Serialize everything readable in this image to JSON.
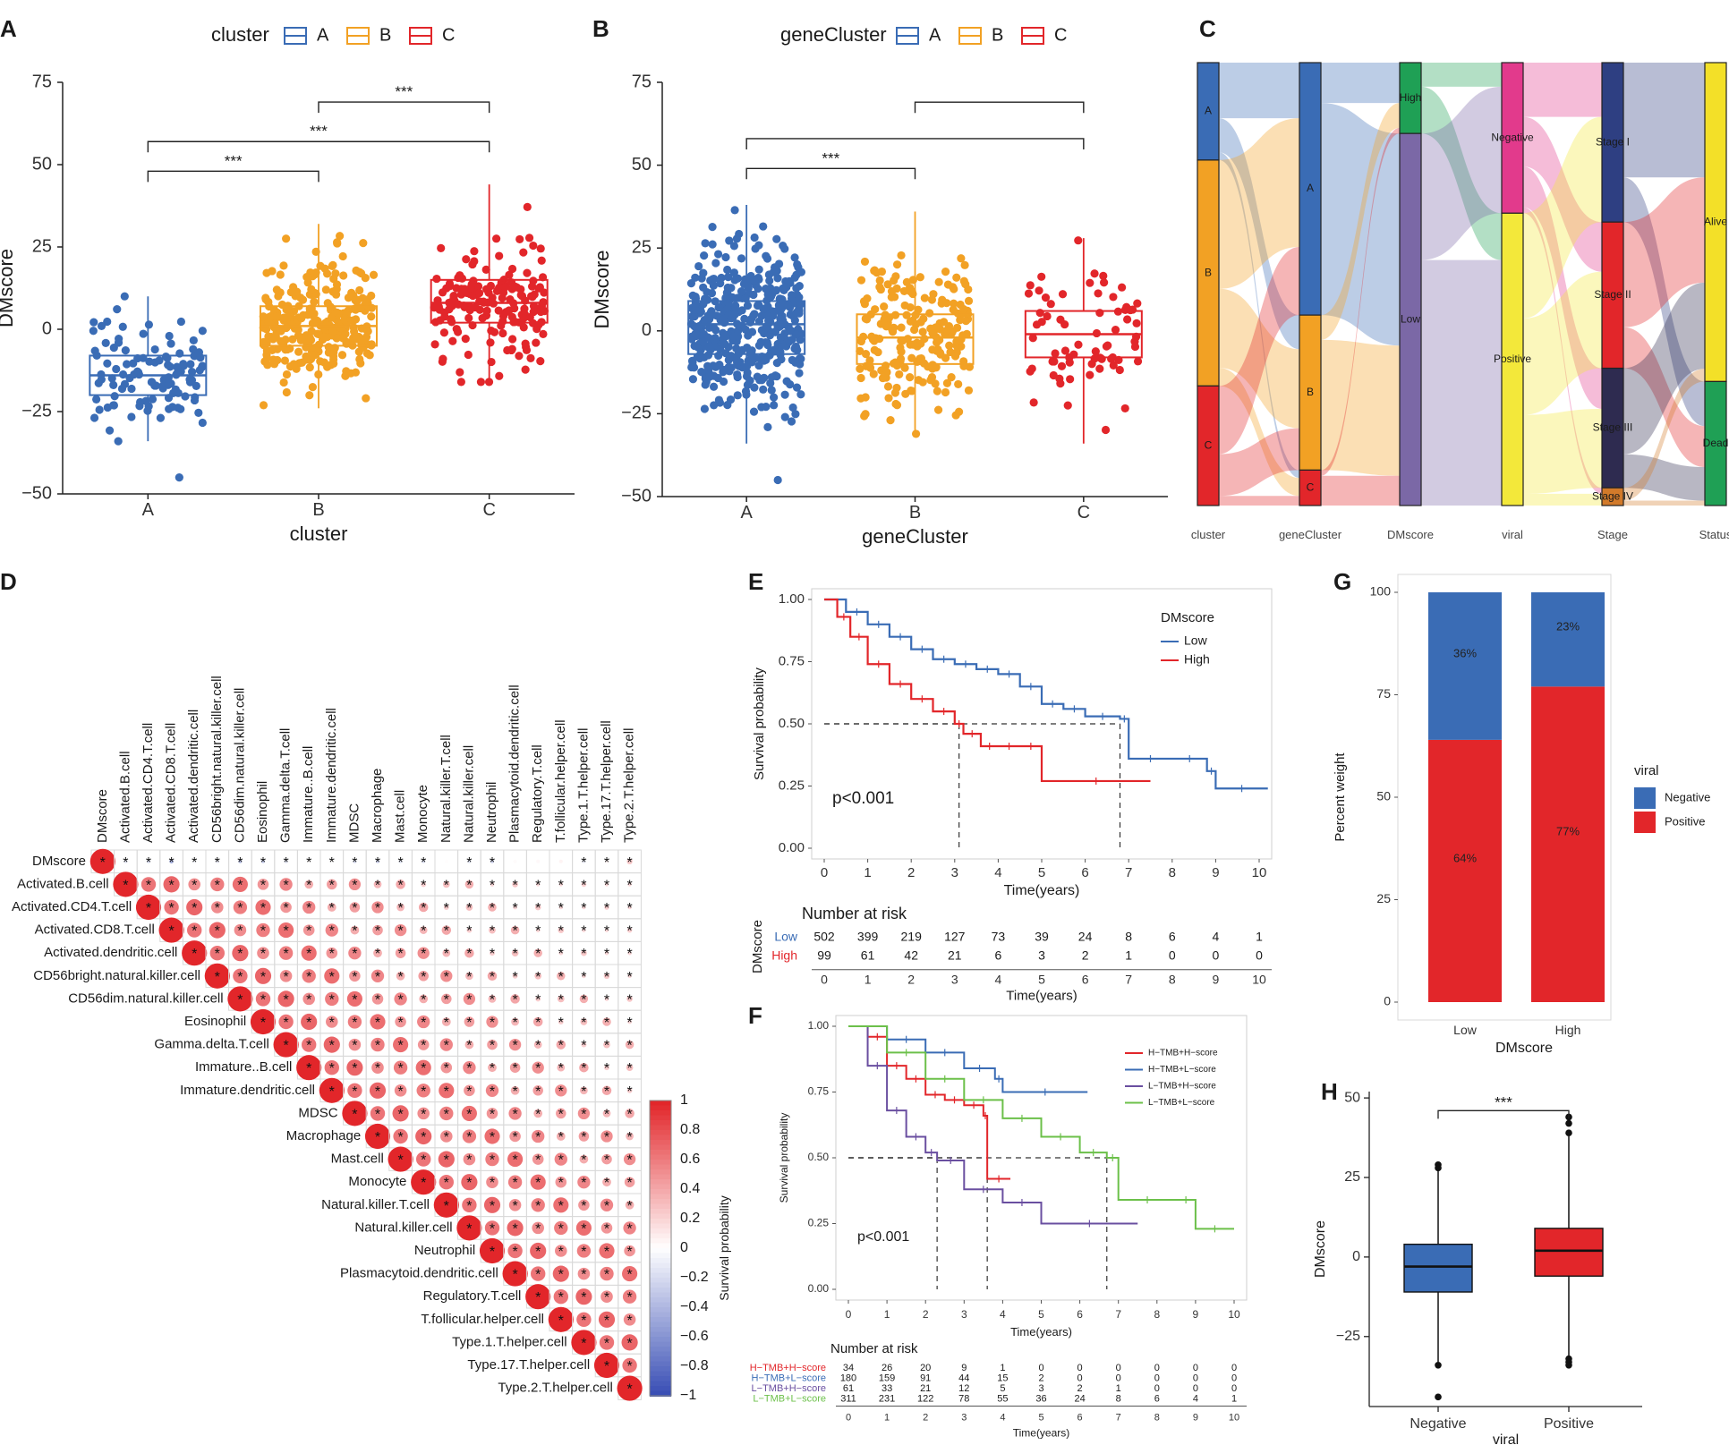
{
  "panel_letters": [
    "A",
    "B",
    "C",
    "D",
    "E",
    "F",
    "G",
    "H"
  ],
  "chart_data": [
    {
      "panel": "A",
      "type": "box",
      "legend_title": "cluster",
      "legend": [
        "A",
        "B",
        "C"
      ],
      "colors": [
        "#3A6CB5",
        "#F2A124",
        "#E2262A"
      ],
      "categories": [
        "A",
        "B",
        "C"
      ],
      "xlabel": "cluster",
      "ylabel": "DMscore",
      "ylim": [
        -50,
        75
      ],
      "yticks": [
        "75",
        "50",
        "25",
        "0",
        "−25",
        "−50"
      ],
      "boxes": [
        {
          "q1": -20,
          "median": -14,
          "q3": -8,
          "wlo": -34,
          "whi": 10,
          "n": 110,
          "outliers": [
            -45
          ]
        },
        {
          "q1": -5,
          "median": 1,
          "q3": 7,
          "wlo": -24,
          "whi": 32,
          "n": 300,
          "outliers": []
        },
        {
          "q1": 2,
          "median": 8,
          "q3": 15,
          "wlo": -16,
          "whi": 44,
          "n": 170,
          "outliers": []
        }
      ],
      "significance": [
        {
          "from": 0,
          "to": 1,
          "label": "***",
          "y": 48
        },
        {
          "from": 0,
          "to": 2,
          "label": "***",
          "y": 57
        },
        {
          "from": 1,
          "to": 2,
          "label": "***",
          "y": 69
        }
      ]
    },
    {
      "panel": "B",
      "type": "box",
      "legend_title": "geneCluster",
      "legend": [
        "A",
        "B",
        "C"
      ],
      "colors": [
        "#3A6CB5",
        "#F2A124",
        "#E2262A"
      ],
      "categories": [
        "A",
        "B",
        "C"
      ],
      "xlabel": "geneCluster",
      "ylabel": "DMscore",
      "ylim": [
        -50,
        75
      ],
      "yticks": [
        "75",
        "50",
        "25",
        "0",
        "−25",
        "−50"
      ],
      "boxes": [
        {
          "q1": -7,
          "median": 2,
          "q3": 9,
          "wlo": -34,
          "whi": 38,
          "n": 420,
          "outliers": [
            -45
          ]
        },
        {
          "q1": -10,
          "median": -2,
          "q3": 5,
          "wlo": -32,
          "whi": 36,
          "n": 210,
          "outliers": []
        },
        {
          "q1": -8,
          "median": -1,
          "q3": 6,
          "wlo": -34,
          "whi": 28,
          "n": 70,
          "outliers": []
        }
      ],
      "significance": [
        {
          "from": 0,
          "to": 1,
          "label": "***",
          "y": 49
        },
        {
          "from": 0,
          "to": 2,
          "label": "",
          "y": 58
        },
        {
          "from": 1,
          "to": 2,
          "label": "",
          "y": 69
        }
      ]
    },
    {
      "panel": "C",
      "type": "sankey",
      "axes": [
        "cluster",
        "geneCluster",
        "DMscore",
        "viral",
        "Stage",
        "Status"
      ],
      "strata": [
        [
          {
            "label": "A",
            "share": 0.22,
            "color": "#3A6CB5"
          },
          {
            "label": "B",
            "share": 0.51,
            "color": "#F2A124"
          },
          {
            "label": "C",
            "share": 0.27,
            "color": "#E2262A"
          }
        ],
        [
          {
            "label": "A",
            "share": 0.57,
            "color": "#3A6CB5"
          },
          {
            "label": "B",
            "share": 0.35,
            "color": "#F2A124"
          },
          {
            "label": "C",
            "share": 0.08,
            "color": "#E2262A"
          }
        ],
        [
          {
            "label": "High",
            "share": 0.16,
            "color": "#1FA055"
          },
          {
            "label": "Low",
            "share": 0.84,
            "color": "#7B68A6"
          }
        ],
        [
          {
            "label": "Negative",
            "share": 0.34,
            "color": "#E23A8C"
          },
          {
            "label": "Positive",
            "share": 0.66,
            "color": "#F3E83A"
          }
        ],
        [
          {
            "label": "Stage I",
            "share": 0.36,
            "color": "#2E3F82"
          },
          {
            "label": "Stage II",
            "share": 0.33,
            "color": "#E2262A"
          },
          {
            "label": "Stage III",
            "share": 0.27,
            "color": "#2E2B50"
          },
          {
            "label": "Stage IV",
            "share": 0.04,
            "color": "#D27A2A"
          }
        ],
        [
          {
            "label": "Alive",
            "share": 0.72,
            "color": "#F3E028"
          },
          {
            "label": "Dead",
            "share": 0.28,
            "color": "#1FA055"
          }
        ]
      ]
    },
    {
      "panel": "D",
      "type": "heatmap",
      "labels": [
        "DMscore",
        "Activated.B.cell",
        "Activated.CD4.T.cell",
        "Activated.CD8.T.cell",
        "Activated.dendritic.cell",
        "CD56bright.natural.killer.cell",
        "CD56dim.natural.killer.cell",
        "Eosinophil",
        "Gamma.delta.T.cell",
        "Immature..B.cell",
        "Immature.dendritic.cell",
        "MDSC",
        "Macrophage",
        "Mast.cell",
        "Monocyte",
        "Natural.killer.T.cell",
        "Natural.killer.cell",
        "Neutrophil",
        "Plasmacytoid.dendritic.cell",
        "Regulatory.T.cell",
        "T.follicular.helper.cell",
        "Type.1.T.helper.cell",
        "Type.17.T.helper.cell",
        "Type.2.T.helper.cell"
      ],
      "colorbar_ticks": [
        "1",
        "0.8",
        "0.6",
        "0.4",
        "0.2",
        "0",
        "−0.2",
        "−0.4",
        "−0.6",
        "−0.8",
        "−1"
      ],
      "colorbar_label": "Survival probability",
      "cell_mark": "*",
      "dmscore_row": [
        1,
        -0.05,
        -0.08,
        -0.18,
        -0.02,
        -0.04,
        -0.15,
        -0.12,
        -0.06,
        0.02,
        0.01,
        -0.08,
        -0.1,
        -0.06,
        -0.07,
        0.01,
        -0.06,
        -0.1,
        0.02,
        0.03,
        0.05,
        -0.04,
        0.06,
        0.25
      ]
    },
    {
      "panel": "E",
      "type": "line",
      "ylabel": "Survival probability",
      "xlabel": "Time(years)",
      "xticks": [
        "0",
        "1",
        "2",
        "3",
        "4",
        "5",
        "6",
        "7",
        "8",
        "9",
        "10"
      ],
      "yticks": [
        "1.00",
        "0.75",
        "0.50",
        "0.25",
        "0.00"
      ],
      "xlim": [
        0,
        10
      ],
      "ylim": [
        0,
        1
      ],
      "legend_title": "DMscore",
      "series": [
        {
          "name": "Low",
          "color": "#3A6CB5",
          "x": [
            0,
            0.5,
            1,
            1.5,
            2,
            2.5,
            3,
            3.5,
            4,
            4.5,
            5,
            5.5,
            6,
            6.8,
            7,
            8,
            8.8,
            9,
            10.2
          ],
          "y": [
            1,
            0.95,
            0.9,
            0.85,
            0.8,
            0.76,
            0.74,
            0.72,
            0.7,
            0.65,
            0.58,
            0.56,
            0.53,
            0.52,
            0.36,
            0.36,
            0.31,
            0.24,
            0.24
          ]
        },
        {
          "name": "High",
          "color": "#E2262A",
          "x": [
            0,
            0.3,
            0.6,
            1,
            1.5,
            2,
            2.5,
            3,
            3.2,
            3.6,
            4,
            4.5,
            5,
            7.5
          ],
          "y": [
            1,
            0.93,
            0.85,
            0.74,
            0.66,
            0.6,
            0.55,
            0.5,
            0.46,
            0.41,
            0.41,
            0.41,
            0.27,
            0.27
          ]
        }
      ],
      "median_lines": [
        {
          "x": 3.1,
          "y": 0.5
        },
        {
          "x": 6.8,
          "y": 0.5
        }
      ],
      "pvalue": "p<0.001",
      "risk_table": {
        "title": "Number at risk",
        "ylabel": "DMscore",
        "xlabel": "Time(years)",
        "rows": [
          {
            "name": "Low",
            "color": "#3A6CB5",
            "values": [
              "502",
              "399",
              "219",
              "127",
              "73",
              "39",
              "24",
              "8",
              "6",
              "4",
              "1"
            ]
          },
          {
            "name": "High",
            "color": "#E2262A",
            "values": [
              "99",
              "61",
              "42",
              "21",
              "6",
              "3",
              "2",
              "1",
              "0",
              "0",
              "0"
            ]
          }
        ]
      }
    },
    {
      "panel": "F",
      "type": "line",
      "ylabel": "Survival probability",
      "xlabel": "Time(years)",
      "xticks": [
        "0",
        "1",
        "2",
        "3",
        "4",
        "5",
        "6",
        "7",
        "8",
        "9",
        "10"
      ],
      "yticks": [
        "1.00",
        "0.75",
        "0.50",
        "0.25",
        "0.00"
      ],
      "xlim": [
        0,
        10
      ],
      "ylim": [
        0,
        1
      ],
      "series": [
        {
          "name": "H−TMB+H−score",
          "color": "#E2262A",
          "x": [
            0,
            0.5,
            1,
            1.5,
            2,
            2.5,
            3,
            3.5,
            3.6,
            4.2
          ],
          "y": [
            1,
            0.96,
            0.85,
            0.8,
            0.74,
            0.72,
            0.7,
            0.66,
            0.42,
            0.42
          ]
        },
        {
          "name": "H−TMB+L−score",
          "color": "#3A6CB5",
          "x": [
            0,
            1,
            2,
            3,
            3.8,
            4,
            6.2
          ],
          "y": [
            1,
            0.95,
            0.9,
            0.84,
            0.8,
            0.75,
            0.75
          ]
        },
        {
          "name": "L−TMB+H−score",
          "color": "#6A4FA0",
          "x": [
            0,
            0.5,
            1,
            1.5,
            2,
            2.3,
            3,
            4,
            5,
            7.5
          ],
          "y": [
            1,
            0.85,
            0.68,
            0.58,
            0.52,
            0.49,
            0.38,
            0.33,
            0.25,
            0.25
          ]
        },
        {
          "name": "L−TMB+L−score",
          "color": "#6CC04A",
          "x": [
            0,
            1,
            2,
            3,
            4,
            5,
            6,
            6.7,
            7,
            8.5,
            9,
            10
          ],
          "y": [
            1,
            0.9,
            0.8,
            0.72,
            0.65,
            0.58,
            0.52,
            0.5,
            0.34,
            0.34,
            0.23,
            0.23
          ]
        }
      ],
      "median_lines": [
        {
          "x": 2.3,
          "y": 0.5
        },
        {
          "x": 3.6,
          "y": 0.5
        },
        {
          "x": 6.7,
          "y": 0.5
        }
      ],
      "pvalue": "p<0.001",
      "risk_table": {
        "title": "Number at risk",
        "xlabel": "Time(years)",
        "rows": [
          {
            "name": "H−TMB+H−score",
            "color": "#E2262A",
            "values": [
              "34",
              "26",
              "20",
              "9",
              "1",
              "0",
              "0",
              "0",
              "0",
              "0",
              "0"
            ]
          },
          {
            "name": "H−TMB+L−score",
            "color": "#3A6CB5",
            "values": [
              "180",
              "159",
              "91",
              "44",
              "15",
              "2",
              "0",
              "0",
              "0",
              "0",
              "0"
            ]
          },
          {
            "name": "L−TMB+H−score",
            "color": "#6A4FA0",
            "values": [
              "61",
              "33",
              "21",
              "12",
              "5",
              "3",
              "2",
              "1",
              "0",
              "0",
              "0"
            ]
          },
          {
            "name": "L−TMB+L−score",
            "color": "#6CC04A",
            "values": [
              "311",
              "231",
              "122",
              "78",
              "55",
              "36",
              "24",
              "8",
              "6",
              "4",
              "1"
            ]
          }
        ]
      }
    },
    {
      "panel": "G",
      "type": "bar",
      "stacked": true,
      "categories": [
        "Low",
        "High"
      ],
      "xlabel": "DMscore",
      "ylabel": "Percent weight",
      "yticks": [
        "100",
        "75",
        "50",
        "25",
        "0"
      ],
      "ylim": [
        0,
        100
      ],
      "legend_title": "viral",
      "series": [
        {
          "name": "Negative",
          "color": "#3A6CB5",
          "values": [
            36,
            23
          ],
          "labels": [
            "36%",
            "23%"
          ]
        },
        {
          "name": "Positive",
          "color": "#E2262A",
          "values": [
            64,
            77
          ],
          "labels": [
            "64%",
            "77%"
          ]
        }
      ]
    },
    {
      "panel": "H",
      "type": "box",
      "categories": [
        "Negative",
        "Positive"
      ],
      "colors": [
        "#3A6CB5",
        "#E2262A"
      ],
      "xlabel": "viral",
      "ylabel": "DMscore",
      "ylim": [
        -47,
        52
      ],
      "yticks": [
        "50",
        "25",
        "0",
        "−25"
      ],
      "boxes": [
        {
          "q1": -11,
          "median": -3,
          "q3": 4,
          "wlo": -33,
          "whi": 28,
          "outliers": [
            29,
            28,
            -34,
            -44
          ]
        },
        {
          "q1": -6,
          "median": 2,
          "q3": 9,
          "wlo": -31,
          "whi": 38,
          "outliers": [
            44,
            42,
            39,
            -32,
            -33,
            -34
          ]
        }
      ],
      "significance": [
        {
          "from": 0,
          "to": 1,
          "label": "***",
          "y": 46
        }
      ]
    }
  ]
}
